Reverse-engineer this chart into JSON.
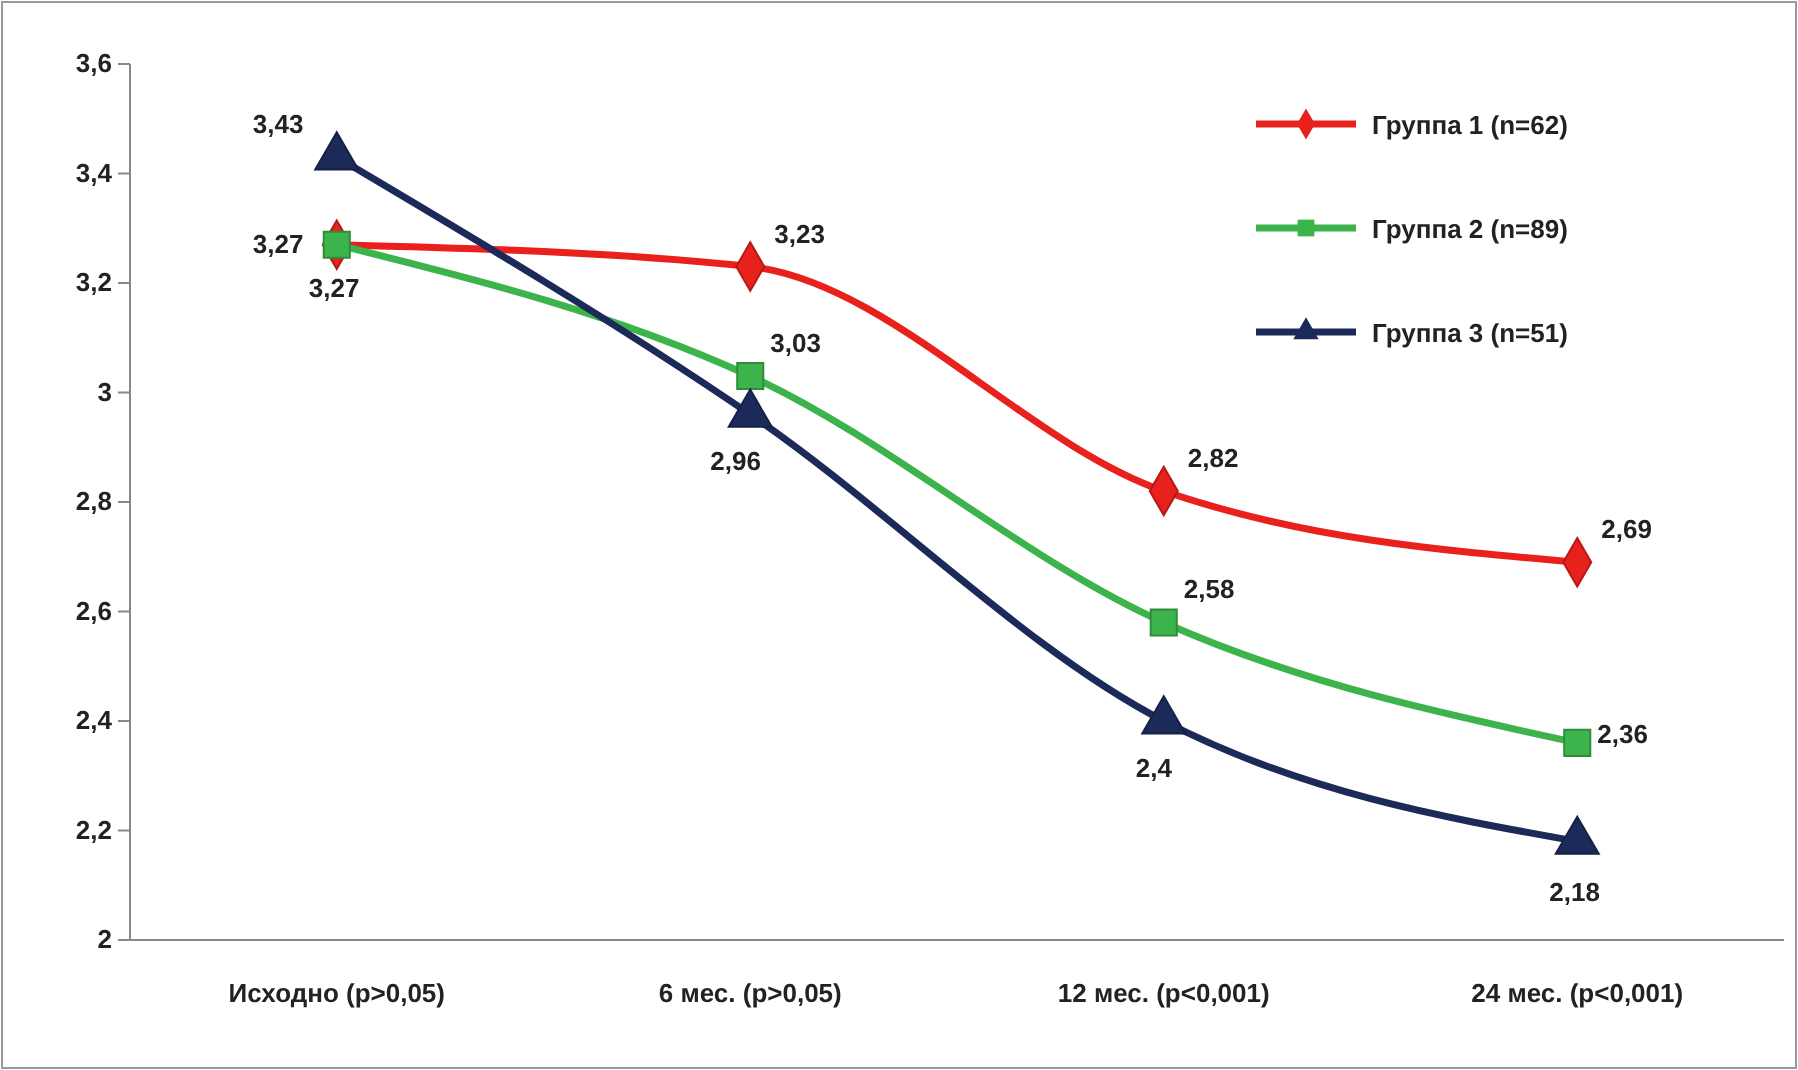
{
  "chart_data": {
    "type": "line",
    "categories": [
      "Исходно (p>0,05)",
      "6 мес. (p>0,05)",
      "12 мес. (p<0,001)",
      "24 мес. (p<0,001)"
    ],
    "series": [
      {
        "name": "Группа 1 (n=62)",
        "color": "#e8211d",
        "marker": "diamond",
        "values": [
          3.27,
          3.23,
          2.82,
          2.69
        ],
        "value_labels": [
          "3,27",
          "3,23",
          "2,82",
          "2,69"
        ]
      },
      {
        "name": "Группа 2 (n=89)",
        "color": "#3cb44b",
        "marker": "square",
        "values": [
          3.27,
          3.03,
          2.58,
          2.36
        ],
        "value_labels": [
          "3,27",
          "3,03",
          "2,58",
          "2,36"
        ]
      },
      {
        "name": "Группа 3 (n=51)",
        "color": "#1c2a5a",
        "marker": "triangle",
        "values": [
          3.43,
          2.96,
          2.4,
          2.18
        ],
        "value_labels": [
          "3,43",
          "2,96",
          "2,4",
          "2,18"
        ]
      }
    ],
    "ylim": [
      2,
      3.6
    ],
    "yticks": [
      2,
      {
        "value": 2.2,
        "label": "2,2"
      },
      {
        "value": 2.4,
        "label": "2,4"
      },
      {
        "value": 2.6,
        "label": "2,6"
      },
      {
        "value": 2.8,
        "label": "2,8"
      },
      3,
      {
        "value": 3.2,
        "label": "3,2"
      },
      {
        "value": 3.4,
        "label": "3,4"
      },
      {
        "value": 3.6,
        "label": "3,6"
      }
    ],
    "grid": false,
    "legend": "top right",
    "line_style": "solid"
  }
}
